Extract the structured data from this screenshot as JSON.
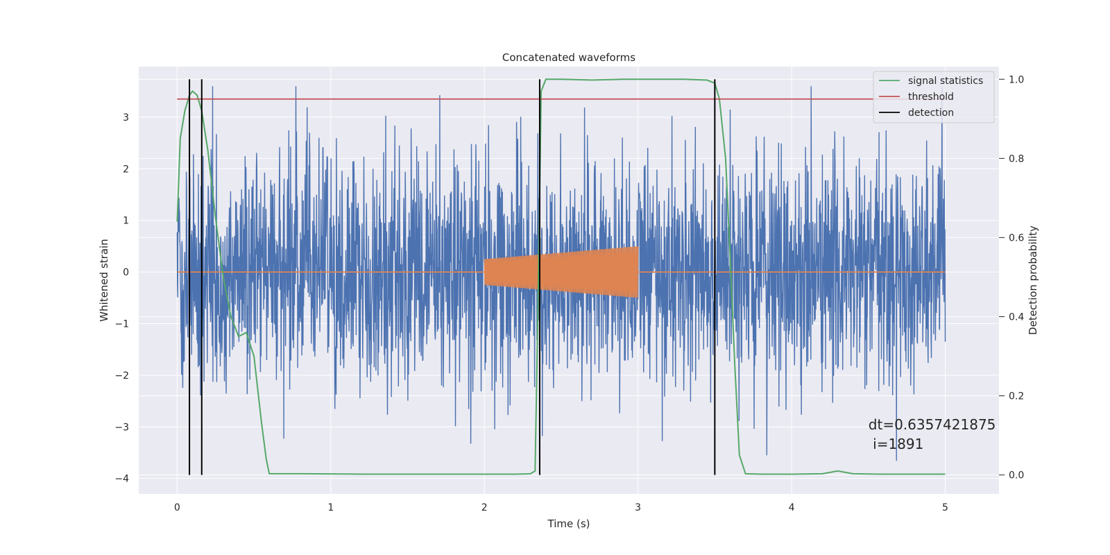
{
  "chart_data": {
    "type": "line",
    "title": "Concatenated waveforms",
    "xlabel": "Time (s)",
    "ylabel": "Whitened strain",
    "y2label": "Detection probability",
    "xlim": [
      -0.25,
      5.35
    ],
    "ylim": [
      -4.3,
      3.98
    ],
    "y2lim": [
      -0.048,
      1.032
    ],
    "x_ticks": [
      0,
      1,
      2,
      3,
      4,
      5
    ],
    "y_ticks": [
      -4,
      -3,
      -2,
      -1,
      0,
      1,
      2,
      3
    ],
    "y2_ticks": [
      0.0,
      0.2,
      0.4,
      0.6,
      0.8,
      1.0
    ],
    "x_tick_labels": [
      "0",
      "1",
      "2",
      "3",
      "4",
      "5"
    ],
    "y_tick_labels": [
      "−4",
      "−3",
      "−2",
      "−1",
      "0",
      "1",
      "2",
      "3"
    ],
    "y2_tick_labels": [
      "0.0",
      "0.2",
      "0.4",
      "0.6",
      "0.8",
      "1.0"
    ],
    "grid": true,
    "legend_position": "top-right",
    "legend": [
      "signal statistics",
      "threshold",
      "detection"
    ],
    "colors": {
      "strain": "#4c72b0",
      "template": "#dd8452",
      "signal_statistics": "#55a868",
      "threshold": "#c44e52",
      "detection": "#000000",
      "background": "#eaeaf2",
      "grid": "#ffffff"
    },
    "strain_noise": {
      "x_range": [
        0,
        5
      ],
      "amplitude_typical": 1.1,
      "y_extent": [
        -3.95,
        3.6
      ]
    },
    "template": {
      "x_range": [
        2,
        3
      ],
      "amplitude_start": 0.25,
      "amplitude_end": 0.5
    },
    "threshold": {
      "value": 0.95,
      "x_range": [
        0,
        5
      ]
    },
    "signal_statistics": {
      "x": [
        0,
        0.02,
        0.05,
        0.08,
        0.1,
        0.13,
        0.16,
        0.2,
        0.25,
        0.3,
        0.35,
        0.4,
        0.45,
        0.5,
        0.55,
        0.58,
        0.6,
        0.8,
        1.2,
        1.6,
        2.0,
        2.2,
        2.3,
        2.33,
        2.35,
        2.37,
        2.4,
        2.5,
        2.7,
        2.9,
        3.1,
        3.3,
        3.45,
        3.5,
        3.53,
        3.57,
        3.6,
        3.63,
        3.66,
        3.7,
        3.8,
        4.0,
        4.2,
        4.3,
        4.4,
        4.6,
        4.8,
        5.0
      ],
      "y": [
        0.64,
        0.85,
        0.92,
        0.96,
        0.97,
        0.96,
        0.92,
        0.82,
        0.65,
        0.5,
        0.4,
        0.35,
        0.36,
        0.3,
        0.13,
        0.04,
        0.003,
        0.003,
        0.002,
        0.002,
        0.002,
        0.002,
        0.003,
        0.01,
        0.45,
        0.97,
        1.0,
        1.0,
        0.998,
        1.0,
        1.0,
        1.0,
        0.998,
        0.99,
        0.95,
        0.8,
        0.55,
        0.28,
        0.05,
        0.003,
        0.002,
        0.002,
        0.003,
        0.01,
        0.003,
        0.002,
        0.002,
        0.002
      ]
    },
    "detections": [
      0.08,
      0.16,
      2.36,
      3.5
    ],
    "detection_y_range": [
      0.0,
      1.0
    ],
    "annotation": {
      "x": 4.5,
      "y": -3.05,
      "text": "dt=0.6357421875\n i=1891"
    }
  }
}
